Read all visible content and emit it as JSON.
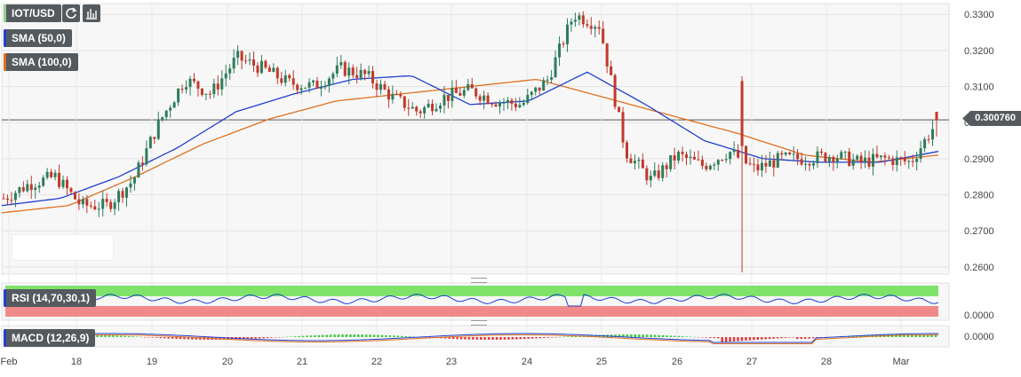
{
  "symbol": "IOT/USD",
  "toolbar": {
    "refresh_icon": "refresh-icon",
    "indicators_icon": "indicators-icon"
  },
  "indicators": [
    {
      "label": "SMA (50,0)",
      "color": "#1f3fd1"
    },
    {
      "label": "SMA (100,0)",
      "color": "#e07020"
    }
  ],
  "current_price": "0.300760",
  "rsi": {
    "label": "RSI (14,70,30,1)",
    "axis_label": "0.0000"
  },
  "macd": {
    "label": "MACD (12,26,9)",
    "axis_label": "0.0000"
  },
  "colors": {
    "up": "#2e7d5b",
    "down": "#c0392b",
    "sma50": "#1f3fd1",
    "sma100": "#e07020",
    "rsi_line": "#1f3fd1",
    "rsi_high": "#7fe36a",
    "rsi_low": "#f08a8a"
  },
  "chart_data": {
    "type": "candlestick",
    "x_labels": [
      "Feb",
      "18",
      "19",
      "20",
      "21",
      "22",
      "23",
      "24",
      "25",
      "26",
      "27",
      "28",
      "Mar"
    ],
    "y_ticks": [
      "0.3300",
      "0.3200",
      "0.3100",
      "0.3000",
      "0.2900",
      "0.2800",
      "0.2700",
      "0.2600"
    ],
    "ylim": [
      0.258,
      0.333
    ],
    "current_price": 0.30076,
    "price_path": [
      0.279,
      0.283,
      0.285,
      0.277,
      0.277,
      0.284,
      0.3,
      0.312,
      0.308,
      0.318,
      0.315,
      0.311,
      0.31,
      0.315,
      0.313,
      0.307,
      0.303,
      0.307,
      0.309,
      0.306,
      0.305,
      0.312,
      0.33,
      0.327,
      0.292,
      0.284,
      0.291,
      0.288,
      0.292,
      0.287,
      0.29,
      0.29,
      0.291,
      0.289,
      0.29,
      0.289,
      0.3
    ],
    "sma50_path": [
      0.277,
      0.279,
      0.285,
      0.293,
      0.303,
      0.308,
      0.312,
      0.313,
      0.305,
      0.306,
      0.314,
      0.305,
      0.295,
      0.29,
      0.289,
      0.289,
      0.292
    ],
    "sma100_path": [
      0.275,
      0.277,
      0.285,
      0.294,
      0.301,
      0.306,
      0.308,
      0.31,
      0.312,
      0.307,
      0.302,
      0.297,
      0.291,
      0.289,
      0.291
    ],
    "candles_count": 236
  }
}
